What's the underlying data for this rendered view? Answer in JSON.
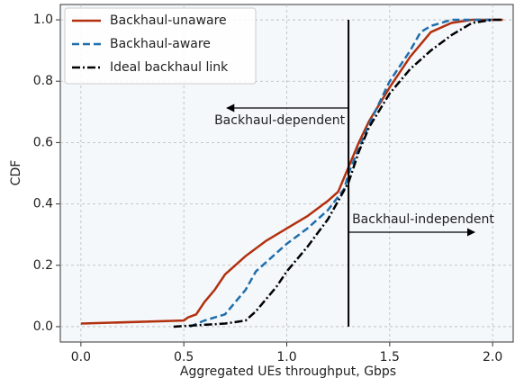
{
  "chart_data": {
    "type": "line",
    "xlabel": "Aggregated UEs throughput, Gbps",
    "ylabel": "CDF",
    "xlim": [
      -0.1,
      2.1
    ],
    "ylim": [
      -0.05,
      1.05
    ],
    "xticks": [
      {
        "value": 0,
        "label": "0.0"
      },
      {
        "value": 0.5,
        "label": "0.5"
      },
      {
        "value": 1,
        "label": "1.0"
      },
      {
        "value": 1.5,
        "label": "1.5"
      },
      {
        "value": 2,
        "label": "2.0"
      }
    ],
    "yticks": [
      {
        "value": 0,
        "label": "0.0"
      },
      {
        "value": 0.2,
        "label": "0.2"
      },
      {
        "value": 0.4,
        "label": "0.4"
      },
      {
        "value": 0.6,
        "label": "0.6"
      },
      {
        "value": 0.8,
        "label": "0.8"
      },
      {
        "value": 1,
        "label": "1.0"
      }
    ],
    "grid": true,
    "legend": "upper left",
    "vline": 1.3,
    "annotations": [
      "Backhaul-dependent",
      "Backhaul-independent"
    ],
    "series": [
      {
        "name": "Backhaul-unaware",
        "color": "#b2300e",
        "dash": "solid",
        "x": [
          0.0,
          0.5,
          0.52,
          0.56,
          0.6,
          0.65,
          0.7,
          0.8,
          0.9,
          1.0,
          1.1,
          1.2,
          1.25,
          1.3,
          1.35,
          1.4,
          1.5,
          1.6,
          1.7,
          1.8,
          1.9,
          2.05
        ],
        "values": [
          0.01,
          0.02,
          0.03,
          0.04,
          0.08,
          0.12,
          0.17,
          0.23,
          0.28,
          0.32,
          0.36,
          0.41,
          0.44,
          0.52,
          0.6,
          0.67,
          0.78,
          0.88,
          0.96,
          0.99,
          1.0,
          1.0
        ]
      },
      {
        "name": "Backhaul-aware",
        "color": "#1f6eab",
        "dash": "dashed",
        "x": [
          0.53,
          0.6,
          0.7,
          0.75,
          0.8,
          0.85,
          0.9,
          1.0,
          1.1,
          1.2,
          1.28,
          1.3,
          1.35,
          1.4,
          1.5,
          1.6,
          1.65,
          1.7,
          1.8,
          2.0
        ],
        "values": [
          0.0,
          0.02,
          0.04,
          0.08,
          0.12,
          0.18,
          0.21,
          0.27,
          0.32,
          0.38,
          0.45,
          0.5,
          0.58,
          0.66,
          0.8,
          0.9,
          0.96,
          0.98,
          1.0,
          1.0
        ]
      },
      {
        "name": "Ideal backhaul link",
        "color": "#000000",
        "dash": "dashdot",
        "x": [
          0.45,
          0.7,
          0.8,
          0.85,
          0.9,
          0.95,
          1.0,
          1.1,
          1.2,
          1.3,
          1.35,
          1.4,
          1.5,
          1.6,
          1.7,
          1.8,
          1.9,
          2.0,
          2.05
        ],
        "values": [
          0.0,
          0.01,
          0.02,
          0.05,
          0.09,
          0.13,
          0.18,
          0.26,
          0.35,
          0.47,
          0.57,
          0.65,
          0.76,
          0.84,
          0.9,
          0.95,
          0.99,
          1.0,
          1.0
        ]
      }
    ]
  }
}
